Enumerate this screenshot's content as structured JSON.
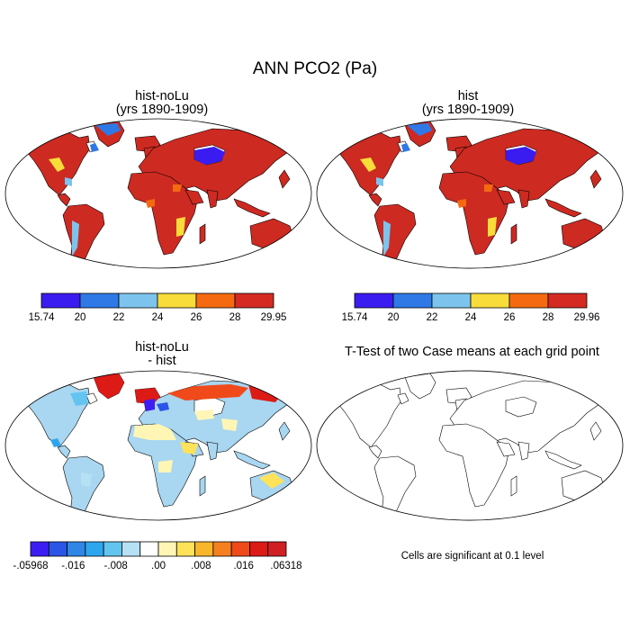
{
  "figure": {
    "title": "ANN PCO2 (Pa)",
    "footnote": "Cells are significant at 0.1 level"
  },
  "panels": [
    {
      "id": "hist-noLu",
      "title_line1": "hist-noLu",
      "title_line2": "(yrs 1890-1909)"
    },
    {
      "id": "hist",
      "title_line1": "hist",
      "title_line2": "(yrs 1890-1909)"
    },
    {
      "id": "diff",
      "title_line1": "hist-noLu",
      "title_line2": "- hist"
    },
    {
      "id": "ttest",
      "title_line1": "T-Test of two Case means at each grid point",
      "title_line2": ""
    }
  ],
  "colorbars": [
    {
      "colors": [
        "#3b1cf0",
        "#2e79e6",
        "#7cc4ee",
        "#f8dc3a",
        "#f56a10",
        "#d42a22"
      ],
      "labels": [
        "15.74",
        "20",
        "22",
        "24",
        "26",
        "28",
        "29.95"
      ]
    },
    {
      "colors": [
        "#3b1cf0",
        "#2e79e6",
        "#7cc4ee",
        "#f8dc3a",
        "#f56a10",
        "#d42a22"
      ],
      "labels": [
        "15.74",
        "20",
        "22",
        "24",
        "26",
        "28",
        "29.96"
      ]
    },
    {
      "colors": [
        "#3d1ef2",
        "#2a55e6",
        "#2f86e6",
        "#2ea6ef",
        "#63c4f0",
        "#b6e0f4",
        "#ffffff",
        "#fff6b6",
        "#fde25a",
        "#f9b62c",
        "#f58020",
        "#f04a1a",
        "#dc1a16",
        "#cf2024"
      ],
      "labels": [
        "-.05968",
        "-.016",
        "-.008",
        ".00",
        ".008",
        ".016",
        ".06318"
      ]
    }
  ]
}
